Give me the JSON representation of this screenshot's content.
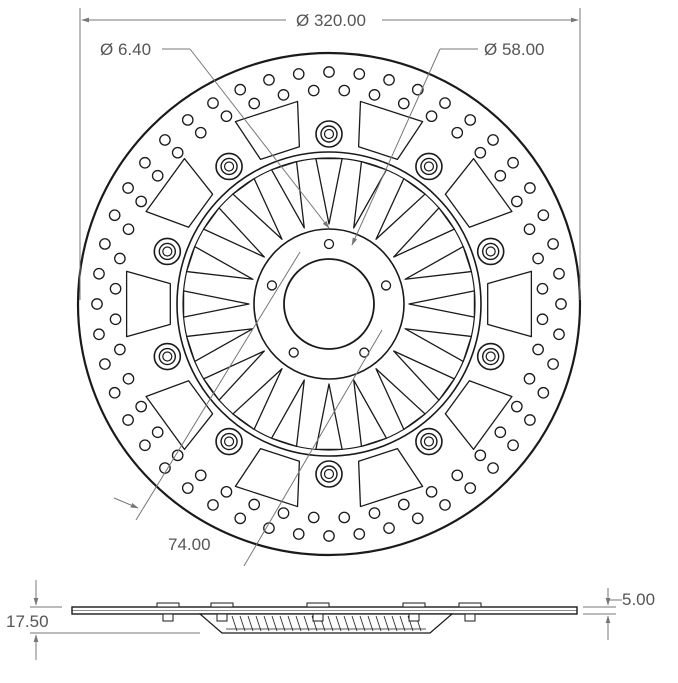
{
  "drawing": {
    "dimensions": {
      "outer_diameter": "Ø 320.00",
      "hole_diameter": "Ø 6.40",
      "center_bore_diameter": "Ø 58.00",
      "bolt_circle": "74.00",
      "offset_height": "5.00",
      "total_height": "17.50"
    },
    "features": {
      "rivet_count": 10,
      "spoke_count": 20,
      "mounting_hole_count": 5,
      "outer_hole_ring_count": 48,
      "inner_hole_ring_count": 44
    },
    "colors": {
      "line": "#1a1a1a",
      "dimension": "#777777",
      "text": "#555555",
      "fill": "#ffffff"
    }
  }
}
